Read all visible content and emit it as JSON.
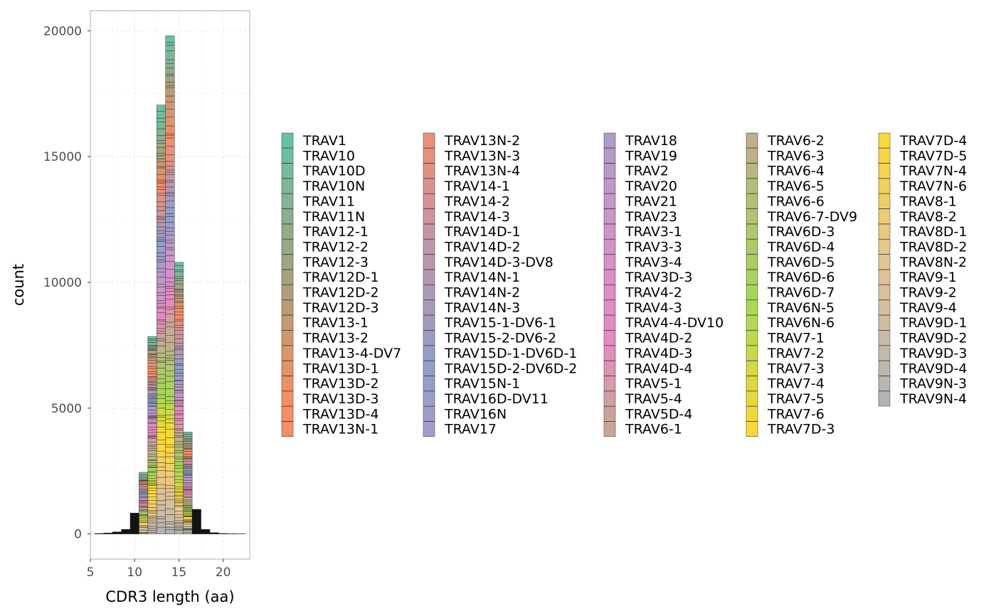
{
  "chart_data": {
    "type": "bar",
    "stacked": true,
    "xlabel": "CDR3 length (aa)",
    "ylabel": "count",
    "xlim": [
      5,
      23
    ],
    "ylim": [
      -1000,
      20800
    ],
    "x_ticks": [
      "5",
      "10",
      "15",
      "20"
    ],
    "y_ticks": [
      "0",
      "5000",
      "10000",
      "15000",
      "20000"
    ],
    "grid": true,
    "legend_position": "right",
    "bars": [
      {
        "x": 6,
        "total": 20
      },
      {
        "x": 7,
        "total": 40
      },
      {
        "x": 8,
        "total": 80
      },
      {
        "x": 9,
        "total": 180
      },
      {
        "x": 10,
        "total": 830
      },
      {
        "x": 11,
        "total": 2450
      },
      {
        "x": 12,
        "total": 7850
      },
      {
        "x": 13,
        "total": 17050
      },
      {
        "x": 14,
        "total": 19800
      },
      {
        "x": 15,
        "total": 10800
      },
      {
        "x": 16,
        "total": 4050
      },
      {
        "x": 17,
        "total": 980
      },
      {
        "x": 18,
        "total": 180
      },
      {
        "x": 19,
        "total": 50
      },
      {
        "x": 20,
        "total": 20
      },
      {
        "x": 21,
        "total": 10
      },
      {
        "x": 22,
        "total": 5
      }
    ],
    "legend_columns": [
      [
        "TRAV1",
        "TRAV10",
        "TRAV10D",
        "TRAV10N",
        "TRAV11",
        "TRAV11N",
        "TRAV12-1",
        "TRAV12-2",
        "TRAV12-3",
        "TRAV12D-1",
        "TRAV12D-2",
        "TRAV12D-3",
        "TRAV13-1",
        "TRAV13-2",
        "TRAV13-4-DV7",
        "TRAV13D-1",
        "TRAV13D-2",
        "TRAV13D-3",
        "TRAV13D-4",
        "TRAV13N-1"
      ],
      [
        "TRAV13N-2",
        "TRAV13N-3",
        "TRAV13N-4",
        "TRAV14-1",
        "TRAV14-2",
        "TRAV14-3",
        "TRAV14D-1",
        "TRAV14D-2",
        "TRAV14D-3-DV8",
        "TRAV14N-1",
        "TRAV14N-2",
        "TRAV14N-3",
        "TRAV15-1-DV6-1",
        "TRAV15-2-DV6-2",
        "TRAV15D-1-DV6D-1",
        "TRAV15D-2-DV6D-2",
        "TRAV15N-1",
        "TRAV16D-DV11",
        "TRAV16N",
        "TRAV17"
      ],
      [
        "TRAV18",
        "TRAV19",
        "TRAV2",
        "TRAV20",
        "TRAV21",
        "TRAV23",
        "TRAV3-1",
        "TRAV3-3",
        "TRAV3-4",
        "TRAV3D-3",
        "TRAV4-2",
        "TRAV4-3",
        "TRAV4-4-DV10",
        "TRAV4D-2",
        "TRAV4D-3",
        "TRAV4D-4",
        "TRAV5-1",
        "TRAV5-4",
        "TRAV5D-4",
        "TRAV6-1"
      ],
      [
        "TRAV6-2",
        "TRAV6-3",
        "TRAV6-4",
        "TRAV6-5",
        "TRAV6-6",
        "TRAV6-7-DV9",
        "TRAV6D-3",
        "TRAV6D-4",
        "TRAV6D-5",
        "TRAV6D-6",
        "TRAV6D-7",
        "TRAV6N-5",
        "TRAV6N-6",
        "TRAV7-1",
        "TRAV7-2",
        "TRAV7-3",
        "TRAV7-4",
        "TRAV7-5",
        "TRAV7-6",
        "TRAV7D-3"
      ],
      [
        "TRAV7D-4",
        "TRAV7D-5",
        "TRAV7N-4",
        "TRAV7N-6",
        "TRAV8-1",
        "TRAV8-2",
        "TRAV8D-1",
        "TRAV8D-2",
        "TRAV8N-2",
        "TRAV9-1",
        "TRAV9-2",
        "TRAV9-4",
        "TRAV9D-1",
        "TRAV9D-2",
        "TRAV9D-3",
        "TRAV9D-4",
        "TRAV9N-3",
        "TRAV9N-4"
      ]
    ],
    "palette_anchors": [
      "#66c2a5",
      "#a6a17e",
      "#fc8d62",
      "#c495a8",
      "#8da0cb",
      "#c896c9",
      "#e78ac3",
      "#b8b680",
      "#a6d854",
      "#ffd92f",
      "#e5c494",
      "#b3b3b3"
    ]
  }
}
